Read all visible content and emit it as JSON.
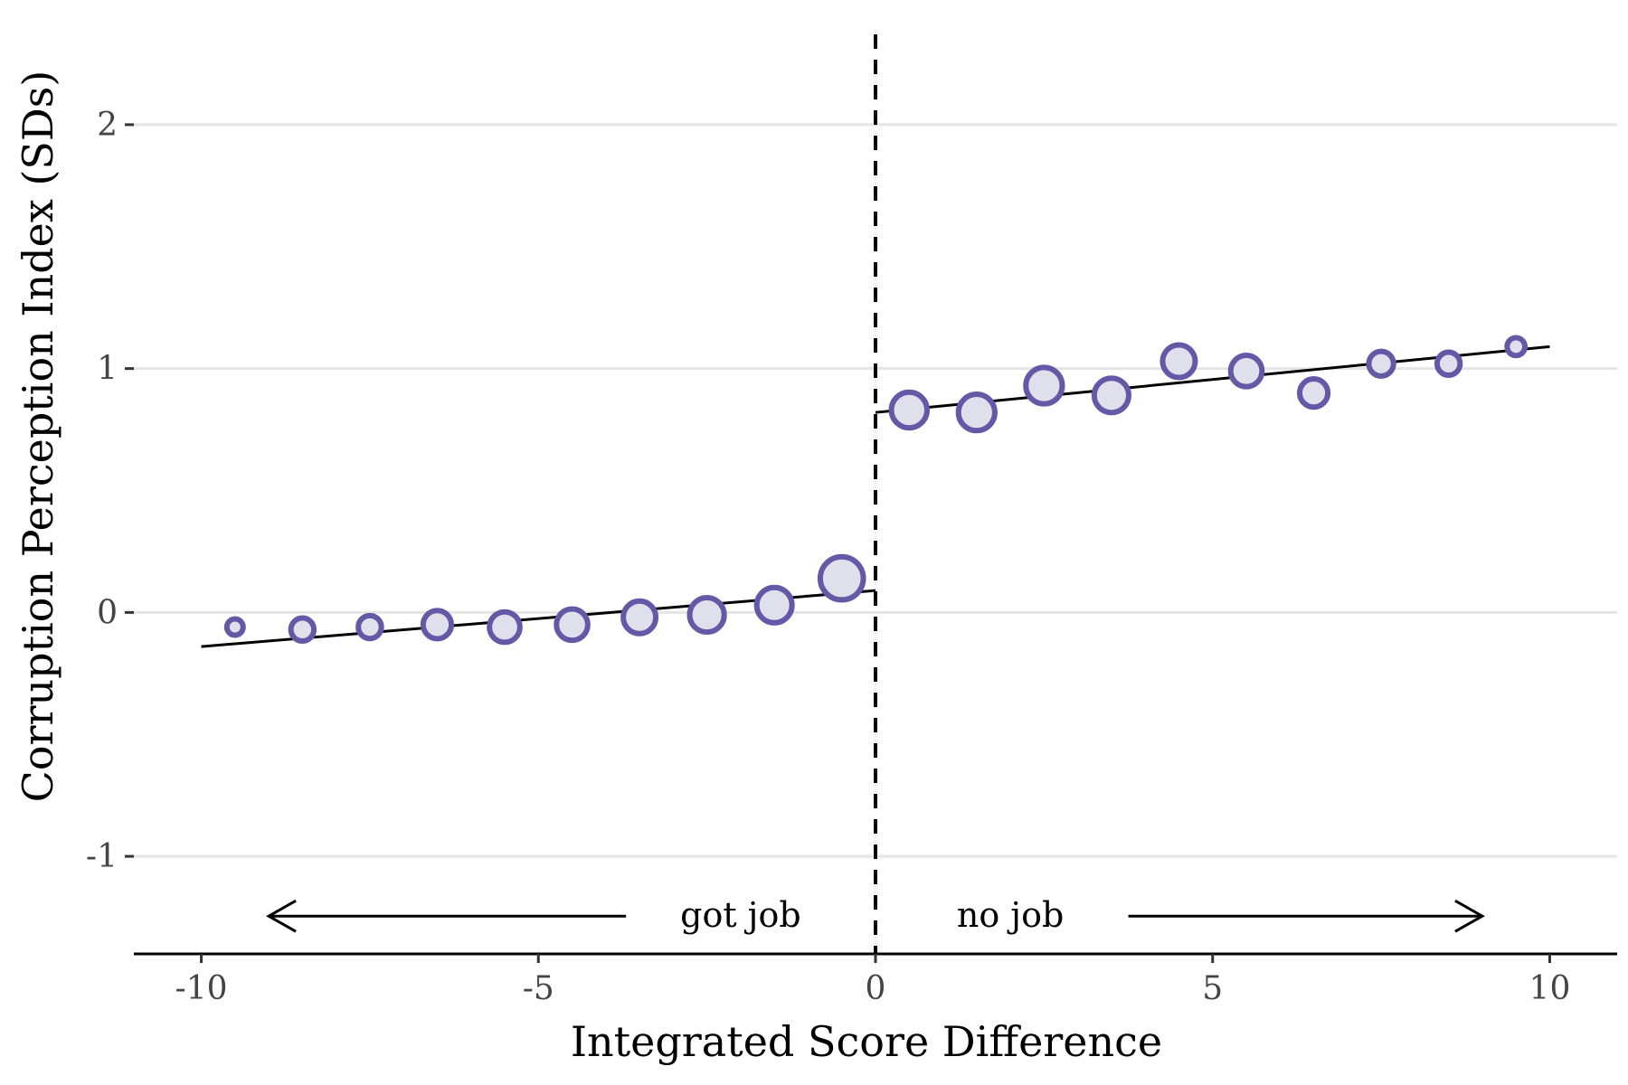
{
  "chart_data": {
    "type": "scatter",
    "xlabel": "Integrated Score Difference",
    "ylabel": "Corruption Perception Index (SDs)",
    "xlim": [
      -11,
      11
    ],
    "ylim": [
      -1.4,
      2.4
    ],
    "x_ticks": [
      {
        "value": -10,
        "label": "-10"
      },
      {
        "value": -5,
        "label": "-5"
      },
      {
        "value": 0,
        "label": "0"
      },
      {
        "value": 5,
        "label": "5"
      },
      {
        "value": 10,
        "label": "10"
      }
    ],
    "y_ticks": [
      {
        "value": -1,
        "label": "-1"
      },
      {
        "value": 0,
        "label": "0"
      },
      {
        "value": 1,
        "label": "1"
      },
      {
        "value": 2,
        "label": "2"
      }
    ],
    "grid": "horizontal",
    "cutoff": 0,
    "annotations": {
      "left": "got job",
      "right": "no job"
    },
    "points": [
      {
        "x": -9.5,
        "y": -0.06,
        "size": 1
      },
      {
        "x": -8.5,
        "y": -0.07,
        "size": 2
      },
      {
        "x": -7.5,
        "y": -0.06,
        "size": 2
      },
      {
        "x": -6.5,
        "y": -0.05,
        "size": 3
      },
      {
        "x": -5.5,
        "y": -0.06,
        "size": 3.5
      },
      {
        "x": -4.5,
        "y": -0.05,
        "size": 3.7
      },
      {
        "x": -3.5,
        "y": -0.02,
        "size": 4
      },
      {
        "x": -2.5,
        "y": -0.01,
        "size": 4.5
      },
      {
        "x": -1.5,
        "y": 0.03,
        "size": 4.7
      },
      {
        "x": -0.5,
        "y": 0.14,
        "size": 7
      },
      {
        "x": 0.5,
        "y": 0.83,
        "size": 4.8
      },
      {
        "x": 1.5,
        "y": 0.82,
        "size": 5
      },
      {
        "x": 2.5,
        "y": 0.93,
        "size": 5
      },
      {
        "x": 3.5,
        "y": 0.89,
        "size": 4.5
      },
      {
        "x": 4.5,
        "y": 1.03,
        "size": 4
      },
      {
        "x": 5.5,
        "y": 0.99,
        "size": 3.7
      },
      {
        "x": 6.5,
        "y": 0.9,
        "size": 3
      },
      {
        "x": 7.5,
        "y": 1.02,
        "size": 2.3
      },
      {
        "x": 8.5,
        "y": 1.02,
        "size": 2
      },
      {
        "x": 9.5,
        "y": 1.09,
        "size": 1.2
      }
    ],
    "fit_lines": [
      {
        "x": [
          -10,
          0
        ],
        "y": [
          -0.14,
          0.09
        ]
      },
      {
        "x": [
          0,
          10
        ],
        "y": [
          0.82,
          1.09
        ]
      }
    ],
    "colors": {
      "point_stroke": "#6359a6",
      "point_fill": "#e0dfec",
      "line": "#000000",
      "grid": "#e5e5e5"
    }
  }
}
